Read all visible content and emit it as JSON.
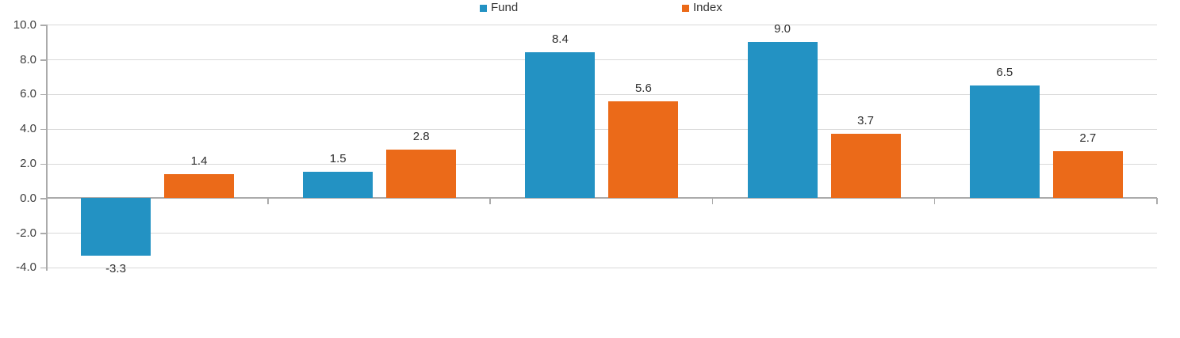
{
  "chart_data": {
    "type": "bar",
    "categories": [
      "",
      "",
      "",
      "",
      ""
    ],
    "series": [
      {
        "name": "Fund",
        "color": "#2392c3",
        "values": [
          -3.3,
          1.5,
          8.4,
          9.0,
          6.5
        ],
        "labels": [
          "-3.3",
          "1.5",
          "8.4",
          "9.0",
          "6.5"
        ]
      },
      {
        "name": "Index",
        "color": "#eb6a19",
        "values": [
          1.4,
          2.8,
          5.6,
          3.7,
          2.7
        ],
        "labels": [
          "1.4",
          "2.8",
          "5.6",
          "3.7",
          "2.7"
        ]
      }
    ],
    "y_axis": {
      "tick_labels": [
        "10.0",
        "8.0",
        "6.0",
        "4.0",
        "2.0",
        "0.0",
        "-2.0",
        "-4.0"
      ],
      "tick_values": [
        10,
        8,
        6,
        4,
        2,
        0,
        -2,
        -4
      ],
      "ylim": [
        -4,
        10
      ]
    },
    "xlabel": "",
    "ylabel": "",
    "grid": true,
    "legend_position": "top-center"
  },
  "colors": {
    "gridline": "#d9d9d9",
    "axis": "#ababab",
    "text": "#3d3d3d"
  }
}
